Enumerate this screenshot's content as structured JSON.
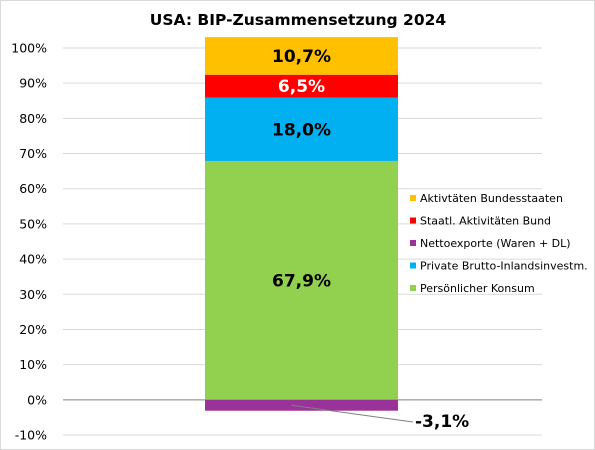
{
  "chart_data": {
    "type": "bar",
    "stacked": true,
    "title": "USA: BIP-Zusammensetzung 2024",
    "xlabel": "",
    "ylabel": "",
    "ylim": [
      -10,
      100
    ],
    "yticks": [
      "-10%",
      "0%",
      "10%",
      "20%",
      "30%",
      "40%",
      "50%",
      "60%",
      "70%",
      "80%",
      "90%",
      "100%"
    ],
    "grid": true,
    "legend_position": "right",
    "series": [
      {
        "name": "Persönlicher Konsum",
        "value": 67.9,
        "label": "67,9%",
        "color": "#92d050",
        "label_color": "#000000"
      },
      {
        "name": "Private Brutto-Inlandsinvestm.",
        "value": 18.0,
        "label": "18,0%",
        "color": "#00b0f0",
        "label_color": "#000000"
      },
      {
        "name": "Nettoexporte (Waren + DL)",
        "value": -3.1,
        "label": "-3,1%",
        "color": "#993399",
        "label_color": "#000000"
      },
      {
        "name": "Staatl. Aktivitäten Bund",
        "value": 6.5,
        "label": "6,5%",
        "color": "#ff0000",
        "label_color": "#ffffff"
      },
      {
        "name": "Aktivtäten Bundesstaaten",
        "value": 10.7,
        "label": "10,7%",
        "color": "#ffc000",
        "label_color": "#000000"
      }
    ],
    "legend_order": [
      "Aktivtäten Bundesstaaten",
      "Staatl. Aktivitäten Bund",
      "Nettoexporte (Waren + DL)",
      "Private Brutto-Inlandsinvestm.",
      "Persönlicher Konsum"
    ]
  }
}
